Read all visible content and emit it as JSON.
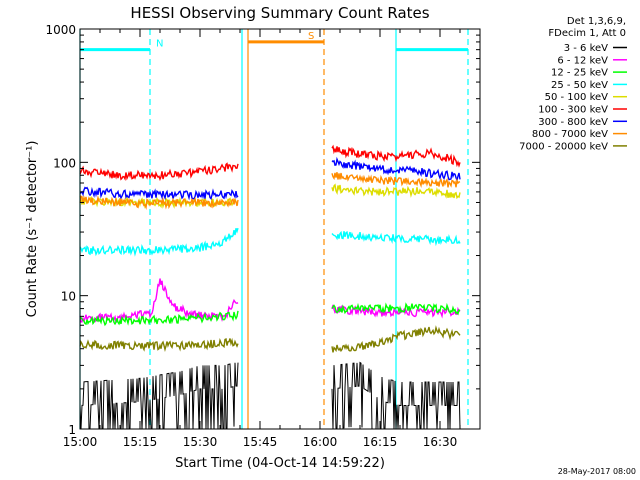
{
  "chart_data": {
    "type": "line",
    "title": "HESSI Observing Summary Count Rates",
    "xlabel": "Start Time (04-Oct-14 14:59:22)",
    "ylabel": "Count Rate (s⁻¹ detector⁻¹)",
    "x_unit": "minutes after 15:00 UT",
    "xlim": [
      0,
      100
    ],
    "ylim": [
      1,
      1000
    ],
    "y_scale": "log",
    "xticks": [
      {
        "value": 0,
        "label": "15:00"
      },
      {
        "value": 15,
        "label": "15:15"
      },
      {
        "value": 30,
        "label": "15:30"
      },
      {
        "value": 45,
        "label": "15:45"
      },
      {
        "value": 60,
        "label": "16:00"
      },
      {
        "value": 75,
        "label": "16:15"
      },
      {
        "value": 90,
        "label": "16:30"
      }
    ],
    "yticks": [
      {
        "value": 1,
        "label": "1"
      },
      {
        "value": 10,
        "label": "10"
      },
      {
        "value": 100,
        "label": "100"
      },
      {
        "value": 1000,
        "label": "1000"
      }
    ],
    "legend_header": [
      "Det 1,3,6,9,",
      "FDecim 1, Att 0"
    ],
    "legend_placement": "top-right, outside plot",
    "segments": [
      [
        0,
        39.5
      ],
      [
        63,
        95
      ]
    ],
    "series": [
      {
        "name": "3 - 6 keV",
        "color": "#000000",
        "x": [
          0,
          15,
          25,
          30,
          36,
          39,
          63,
          70,
          76,
          80,
          85,
          95
        ],
        "y": [
          1.5,
          1.6,
          1.8,
          2.0,
          2.0,
          2.1,
          2.0,
          2.1,
          1.6,
          1.5,
          1.5,
          1.5
        ]
      },
      {
        "name": "6 - 12 keV",
        "color": "#ff00ff",
        "x": [
          0,
          10,
          18,
          20,
          23,
          28,
          33,
          36,
          39,
          63,
          75,
          85,
          95
        ],
        "y": [
          6.8,
          6.8,
          7.5,
          13,
          8.5,
          7.2,
          7.0,
          7.0,
          9.0,
          8.0,
          7.5,
          7.5,
          7.5
        ]
      },
      {
        "name": "12 - 25 keV",
        "color": "#00ff00",
        "x": [
          0,
          15,
          30,
          39,
          63,
          75,
          85,
          95
        ],
        "y": [
          6.5,
          6.5,
          6.8,
          7.2,
          8.0,
          8.0,
          8.2,
          7.8
        ]
      },
      {
        "name": "25 - 50 keV",
        "color": "#00ffff",
        "x": [
          0,
          10,
          20,
          30,
          35,
          38,
          39.5,
          63,
          70,
          80,
          85,
          90,
          95
        ],
        "y": [
          22,
          22,
          22,
          23,
          25,
          29,
          32,
          29,
          28,
          27,
          27,
          26,
          26
        ]
      },
      {
        "name": "50 - 100 keV",
        "color": "#dddd00",
        "x": [
          0,
          15,
          30,
          39,
          63,
          75,
          85,
          95
        ],
        "y": [
          52,
          50,
          50,
          51,
          64,
          60,
          61,
          57
        ]
      },
      {
        "name": "100 - 300 keV",
        "color": "#ff0000",
        "x": [
          0,
          10,
          20,
          30,
          35,
          39,
          63,
          70,
          78,
          88,
          95
        ],
        "y": [
          87,
          80,
          80,
          85,
          90,
          95,
          125,
          115,
          110,
          118,
          100
        ]
      },
      {
        "name": "300 - 800 keV",
        "color": "#0000ff",
        "x": [
          0,
          10,
          20,
          30,
          39,
          63,
          75,
          85,
          95
        ],
        "y": [
          62,
          58,
          57,
          57,
          58,
          100,
          90,
          85,
          78
        ]
      },
      {
        "name": "800 - 7000 keV",
        "color": "#ff8c00",
        "x": [
          0,
          15,
          30,
          39,
          63,
          75,
          85,
          95
        ],
        "y": [
          52,
          49,
          50,
          50,
          80,
          73,
          72,
          68
        ]
      },
      {
        "name": "7000 - 20000 keV",
        "color": "#808000",
        "x": [
          0,
          15,
          30,
          39,
          63,
          70,
          80,
          88,
          95
        ],
        "y": [
          4.3,
          4.2,
          4.3,
          4.5,
          4.0,
          4.1,
          5.0,
          5.5,
          5.0
        ]
      }
    ],
    "annotations": [
      {
        "label": "N",
        "color": "#00ffff",
        "level": 700,
        "x_start": 0,
        "x_end": 17.5
      },
      {
        "label": "",
        "color": "#00ffff",
        "level": 700,
        "x_start": 79,
        "x_end": 97
      },
      {
        "label": "S",
        "color": "#ff8c00",
        "level": 800,
        "x_start": 42,
        "x_end": 61
      }
    ],
    "markers": [
      {
        "x": 0,
        "color": "#00ffff",
        "style": "solid"
      },
      {
        "x": 17.5,
        "color": "#00ffff",
        "style": "dashed"
      },
      {
        "x": 40.5,
        "color": "#00ffff",
        "style": "solid"
      },
      {
        "x": 42,
        "color": "#ff8c00",
        "style": "solid"
      },
      {
        "x": 61,
        "color": "#ff8c00",
        "style": "dashed"
      },
      {
        "x": 79,
        "color": "#00ffff",
        "style": "solid"
      },
      {
        "x": 97,
        "color": "#00ffff",
        "style": "dashed"
      }
    ]
  },
  "footer_date": "28-May-2017 08:00"
}
